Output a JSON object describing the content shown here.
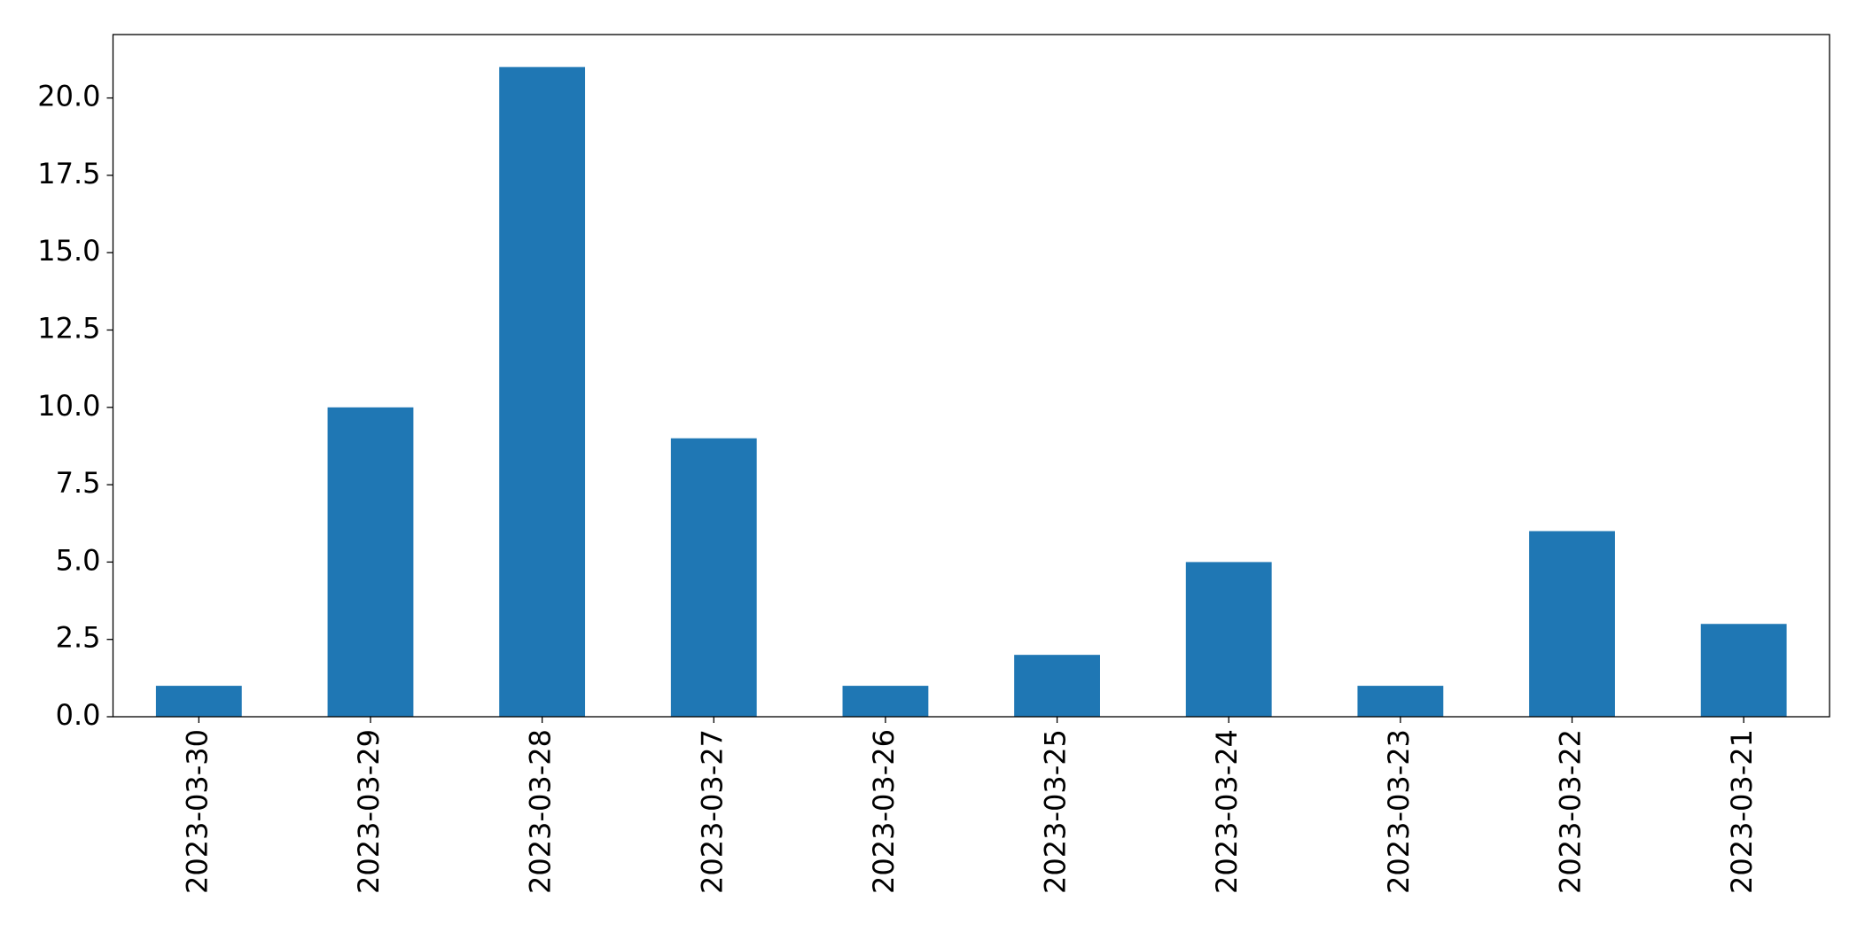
{
  "chart_data": {
    "type": "bar",
    "categories": [
      "2023-03-30",
      "2023-03-29",
      "2023-03-28",
      "2023-03-27",
      "2023-03-26",
      "2023-03-25",
      "2023-03-24",
      "2023-03-23",
      "2023-03-22",
      "2023-03-21"
    ],
    "values": [
      1,
      10,
      21,
      9,
      1,
      2,
      5,
      1,
      6,
      3
    ],
    "color": "#1f77b4",
    "ylim": [
      0,
      22.05
    ],
    "yticks": [
      {
        "value": 0,
        "label": "0.0"
      },
      2.5,
      {
        "value": 5,
        "label": "5.0"
      },
      7.5,
      {
        "value": 10,
        "label": "10.0"
      },
      12.5,
      {
        "value": 15,
        "label": "15.0"
      },
      17.5,
      {
        "value": 20,
        "label": "20.0"
      }
    ],
    "grid": false
  }
}
